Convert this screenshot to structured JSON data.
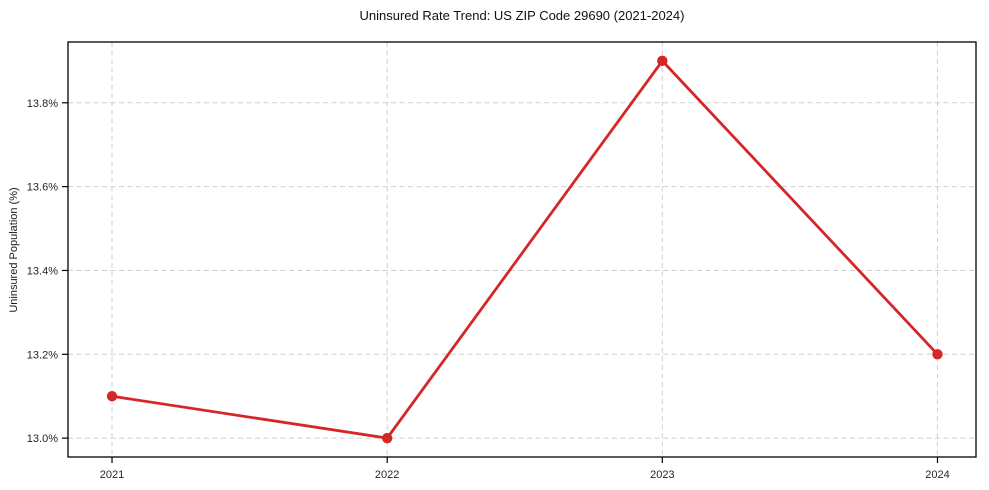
{
  "chart_data": {
    "type": "line",
    "title": "Uninsured Rate Trend: US ZIP Code 29690 (2021-2024)",
    "ylabel": "Uninsured Population (%)",
    "xlabel": "",
    "x": [
      2021,
      2022,
      2023,
      2024
    ],
    "values": [
      13.1,
      13.0,
      13.9,
      13.2
    ],
    "xlim": [
      2020.84,
      2024.14
    ],
    "ylim": [
      12.955,
      13.945
    ],
    "xticks": {
      "values": [
        2021,
        2022,
        2023,
        2024
      ],
      "labels": [
        "2021",
        "2022",
        "2023",
        "2024"
      ]
    },
    "yticks": {
      "values": [
        13.0,
        13.2,
        13.4,
        13.6,
        13.8
      ],
      "labels": [
        "13.0%",
        "13.2%",
        "13.4%",
        "13.6%",
        "13.8%"
      ]
    },
    "grid": true,
    "grid_style": "dashed",
    "legend": false,
    "marker": "circle",
    "colors": {
      "line": "#d62728",
      "grid": "#cfcfcf",
      "axis": "#000000",
      "text": "#262626"
    }
  }
}
